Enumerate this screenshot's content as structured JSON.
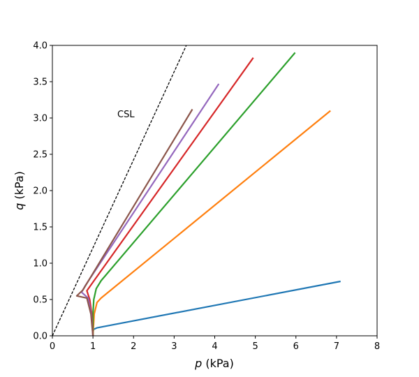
{
  "chart_data": {
    "type": "line",
    "xlabel_var": "p",
    "xlabel_unit": " (kPa)",
    "ylabel_var": "q",
    "ylabel_unit": " (kPa)",
    "xlim": [
      0,
      8
    ],
    "ylim": [
      0,
      4
    ],
    "xticks": [
      "0",
      "1",
      "2",
      "3",
      "4",
      "5",
      "6",
      "7",
      "8"
    ],
    "yticks": [
      "0.0",
      "0.5",
      "1.0",
      "1.5",
      "2.0",
      "2.5",
      "3.0",
      "3.5",
      "4.0"
    ],
    "grid": false,
    "annotations": [
      {
        "text": "CSL",
        "x": 1.6,
        "y": 3.0
      }
    ],
    "reference_lines": [
      {
        "name": "CSL",
        "style": "dashed",
        "color": "#000000",
        "points": [
          [
            0,
            0
          ],
          [
            3.3,
            4.0
          ]
        ]
      }
    ],
    "series": [
      {
        "color": "#1f77b4",
        "points": [
          [
            1.0,
            0.0
          ],
          [
            1.0,
            0.06
          ],
          [
            1.02,
            0.09
          ],
          [
            1.1,
            0.11
          ],
          [
            7.1,
            0.75
          ]
        ]
      },
      {
        "color": "#ff7f0e",
        "points": [
          [
            1.0,
            0.0
          ],
          [
            1.03,
            0.3
          ],
          [
            1.1,
            0.46
          ],
          [
            1.2,
            0.52
          ],
          [
            6.85,
            3.1
          ]
        ]
      },
      {
        "color": "#2ca02c",
        "points": [
          [
            1.0,
            0.0
          ],
          [
            1.0,
            0.3
          ],
          [
            1.02,
            0.5
          ],
          [
            1.08,
            0.65
          ],
          [
            1.2,
            0.76
          ],
          [
            5.98,
            3.9
          ]
        ]
      },
      {
        "color": "#d62728",
        "points": [
          [
            1.0,
            0.0
          ],
          [
            0.97,
            0.3
          ],
          [
            0.92,
            0.5
          ],
          [
            0.85,
            0.62
          ],
          [
            0.95,
            0.7
          ],
          [
            4.95,
            3.83
          ]
        ]
      },
      {
        "color": "#9467bd",
        "points": [
          [
            1.0,
            0.0
          ],
          [
            0.96,
            0.3
          ],
          [
            0.88,
            0.52
          ],
          [
            0.72,
            0.6
          ],
          [
            0.82,
            0.7
          ],
          [
            4.1,
            3.47
          ]
        ]
      },
      {
        "color": "#8c564b",
        "points": [
          [
            1.0,
            0.0
          ],
          [
            0.95,
            0.3
          ],
          [
            0.85,
            0.52
          ],
          [
            0.6,
            0.55
          ],
          [
            0.75,
            0.63
          ],
          [
            3.45,
            3.12
          ]
        ]
      }
    ]
  }
}
